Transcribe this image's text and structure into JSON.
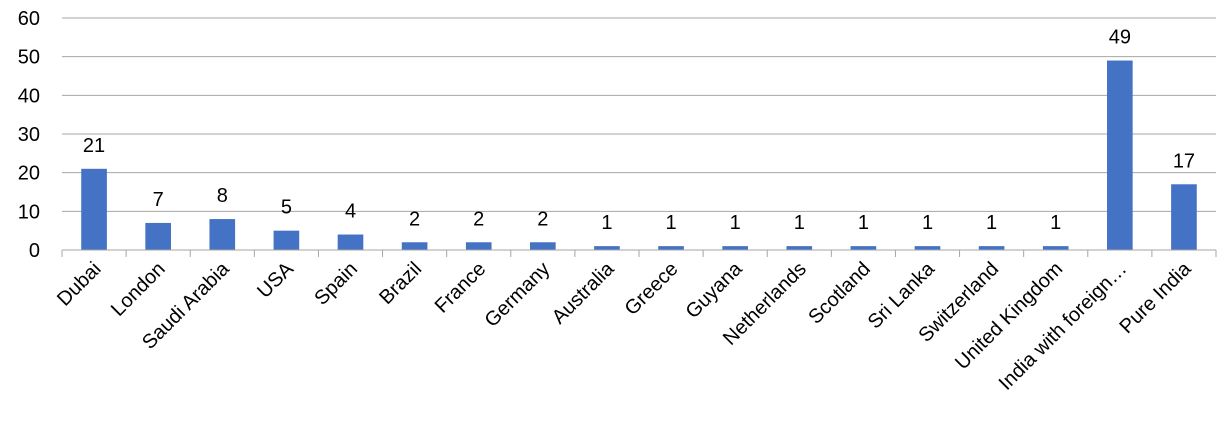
{
  "chart_data": {
    "type": "bar",
    "categories": [
      "Dubai",
      "London",
      "Saudi Arabia",
      "USA",
      "Spain",
      "Brazil",
      "France",
      "Germany",
      "Australia",
      "Greece",
      "Guyana",
      "Netherlands",
      "Scotland",
      "Sri Lanka",
      "Switzerland",
      "United Kingdom",
      "India with foreign…",
      "Pure India"
    ],
    "values": [
      21,
      7,
      8,
      5,
      4,
      2,
      2,
      2,
      1,
      1,
      1,
      1,
      1,
      1,
      1,
      1,
      49,
      17
    ],
    "ylim": [
      0,
      60
    ],
    "yticks": [
      0,
      10,
      20,
      30,
      40,
      50,
      60
    ],
    "grid": true,
    "legend": "none",
    "bar_color": "#4472C4",
    "grid_color": "#A6A6A6"
  }
}
